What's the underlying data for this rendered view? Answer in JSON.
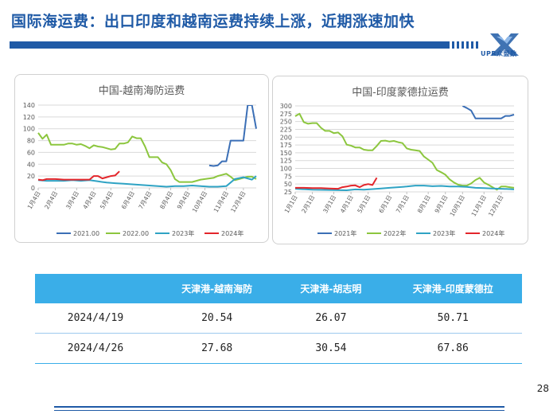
{
  "header": {
    "title": "国际海运费：出口印度和越南运费持续上涨，近期涨速加快",
    "logo_text": "UPR众盟数",
    "brand_color": "#1f5aa6"
  },
  "chart_data": [
    {
      "type": "line",
      "title": "中国-越南海防运费",
      "ylim": [
        0,
        140
      ],
      "yticks": [
        0,
        20,
        40,
        60,
        80,
        100,
        120,
        140
      ],
      "xlim": [
        0,
        51
      ],
      "x_ticks": [
        {
          "x": 0,
          "label": "1月4日"
        },
        {
          "x": 4,
          "label": "2月4日"
        },
        {
          "x": 9,
          "label": "3月4日"
        },
        {
          "x": 13,
          "label": "4月4日"
        },
        {
          "x": 17,
          "label": "5月4日"
        },
        {
          "x": 22,
          "label": "6月4日"
        },
        {
          "x": 26,
          "label": "7月4日"
        },
        {
          "x": 31,
          "label": "8月4日"
        },
        {
          "x": 35,
          "label": "9月4日"
        },
        {
          "x": 39,
          "label": "10月4日"
        },
        {
          "x": 44,
          "label": "11月4日"
        },
        {
          "x": 48,
          "label": "12月4日"
        }
      ],
      "legend_position": "bottom",
      "series": [
        {
          "name": "2021.00",
          "color": "#3b6fb6",
          "points": [
            [
              40,
              38
            ],
            [
              41,
              37
            ],
            [
              42,
              38
            ],
            [
              43,
              45
            ],
            [
              44,
              45
            ],
            [
              45,
              80
            ],
            [
              46,
              80
            ],
            [
              47,
              80
            ],
            [
              48,
              80
            ],
            [
              49,
              140
            ],
            [
              50,
              140
            ],
            [
              51,
              100
            ]
          ]
        },
        {
          "name": "2022.00",
          "color": "#8cc63e",
          "points": [
            [
              0,
              93
            ],
            [
              1,
              83
            ],
            [
              2,
              90
            ],
            [
              3,
              73
            ],
            [
              4,
              73
            ],
            [
              5,
              73
            ],
            [
              6,
              73
            ],
            [
              7,
              75
            ],
            [
              8,
              75
            ],
            [
              9,
              73
            ],
            [
              10,
              74
            ],
            [
              11,
              71
            ],
            [
              12,
              67
            ],
            [
              13,
              72
            ],
            [
              14,
              70
            ],
            [
              15,
              69
            ],
            [
              16,
              67
            ],
            [
              17,
              65
            ],
            [
              18,
              66
            ],
            [
              19,
              75
            ],
            [
              20,
              75
            ],
            [
              21,
              77
            ],
            [
              22,
              87
            ],
            [
              23,
              84
            ],
            [
              24,
              84
            ],
            [
              25,
              70
            ],
            [
              26,
              52
            ],
            [
              27,
              52
            ],
            [
              28,
              52
            ],
            [
              29,
              43
            ],
            [
              30,
              40
            ],
            [
              31,
              30
            ],
            [
              32,
              15
            ],
            [
              33,
              10
            ],
            [
              34,
              10
            ],
            [
              35,
              10
            ],
            [
              36,
              10
            ],
            [
              37,
              12
            ],
            [
              38,
              14
            ],
            [
              39,
              15
            ],
            [
              40,
              16
            ],
            [
              41,
              17
            ],
            [
              42,
              20
            ],
            [
              43,
              22
            ],
            [
              44,
              24
            ],
            [
              45,
              19
            ],
            [
              46,
              13
            ],
            [
              47,
              15
            ],
            [
              48,
              17
            ],
            [
              49,
              19
            ],
            [
              50,
              19
            ],
            [
              51,
              15
            ]
          ]
        },
        {
          "name": "2023年",
          "color": "#2fa3c4",
          "points": [
            [
              0,
              13
            ],
            [
              2,
              12
            ],
            [
              4,
              12
            ],
            [
              6,
              12
            ],
            [
              8,
              13
            ],
            [
              10,
              12
            ],
            [
              12,
              13
            ],
            [
              14,
              11
            ],
            [
              16,
              9
            ],
            [
              18,
              8
            ],
            [
              20,
              7
            ],
            [
              22,
              6
            ],
            [
              24,
              5
            ],
            [
              26,
              4
            ],
            [
              28,
              3
            ],
            [
              30,
              2
            ],
            [
              32,
              3
            ],
            [
              34,
              3
            ],
            [
              36,
              4
            ],
            [
              38,
              3
            ],
            [
              40,
              2
            ],
            [
              42,
              2
            ],
            [
              44,
              3
            ],
            [
              46,
              15
            ],
            [
              48,
              18
            ],
            [
              50,
              14
            ],
            [
              51,
              20
            ]
          ]
        },
        {
          "name": "2024年",
          "color": "#e3262b",
          "points": [
            [
              0,
              14
            ],
            [
              1,
              13
            ],
            [
              2,
              15
            ],
            [
              4,
              15
            ],
            [
              6,
              14
            ],
            [
              8,
              14
            ],
            [
              10,
              14
            ],
            [
              12,
              14
            ],
            [
              13,
              20
            ],
            [
              14,
              20
            ],
            [
              15,
              16
            ],
            [
              16,
              18
            ],
            [
              17,
              20
            ],
            [
              18,
              21
            ],
            [
              19,
              28
            ]
          ]
        }
      ]
    },
    {
      "type": "line",
      "title": "中国-印度蒙德拉运费",
      "ylim": [
        25,
        300
      ],
      "yticks": [
        25,
        50,
        75,
        100,
        125,
        150,
        175,
        200,
        225,
        250,
        275,
        300
      ],
      "xlim": [
        0,
        51
      ],
      "x_ticks": [
        {
          "x": 0,
          "label": "1月1日"
        },
        {
          "x": 4,
          "label": "2月1日"
        },
        {
          "x": 9,
          "label": "3月1日"
        },
        {
          "x": 13,
          "label": "4月1日"
        },
        {
          "x": 17,
          "label": "5月1日"
        },
        {
          "x": 22,
          "label": "6月1日"
        },
        {
          "x": 26,
          "label": "7月1日"
        },
        {
          "x": 31,
          "label": "8月1日"
        },
        {
          "x": 35,
          "label": "9月1日"
        },
        {
          "x": 39,
          "label": "10月1日"
        },
        {
          "x": 44,
          "label": "11月1日"
        },
        {
          "x": 48,
          "label": "12月1日"
        }
      ],
      "legend_position": "bottom",
      "series": [
        {
          "name": "2021年",
          "color": "#3b6fb6",
          "points": [
            [
              39,
              300
            ],
            [
              40,
              293
            ],
            [
              41,
              285
            ],
            [
              42,
              260
            ],
            [
              43,
              260
            ],
            [
              44,
              260
            ],
            [
              45,
              260
            ],
            [
              46,
              260
            ],
            [
              47,
              260
            ],
            [
              48,
              260
            ],
            [
              49,
              268
            ],
            [
              50,
              268
            ],
            [
              51,
              272
            ]
          ]
        },
        {
          "name": "2022年",
          "color": "#8cc63e",
          "points": [
            [
              0,
              267
            ],
            [
              1,
              275
            ],
            [
              2,
              248
            ],
            [
              3,
              243
            ],
            [
              4,
              245
            ],
            [
              5,
              245
            ],
            [
              6,
              230
            ],
            [
              7,
              220
            ],
            [
              8,
              220
            ],
            [
              9,
              213
            ],
            [
              10,
              215
            ],
            [
              11,
              203
            ],
            [
              12,
              176
            ],
            [
              13,
              173
            ],
            [
              14,
              167
            ],
            [
              15,
              167
            ],
            [
              16,
              160
            ],
            [
              17,
              158
            ],
            [
              18,
              158
            ],
            [
              19,
              172
            ],
            [
              20,
              188
            ],
            [
              21,
              189
            ],
            [
              22,
              186
            ],
            [
              23,
              188
            ],
            [
              24,
              184
            ],
            [
              25,
              181
            ],
            [
              26,
              164
            ],
            [
              27,
              160
            ],
            [
              28,
              158
            ],
            [
              29,
              156
            ],
            [
              30,
              138
            ],
            [
              31,
              128
            ],
            [
              32,
              118
            ],
            [
              33,
              95
            ],
            [
              34,
              88
            ],
            [
              35,
              80
            ],
            [
              36,
              65
            ],
            [
              37,
              55
            ],
            [
              38,
              48
            ],
            [
              39,
              45
            ],
            [
              40,
              45
            ],
            [
              41,
              52
            ],
            [
              42,
              63
            ],
            [
              43,
              70
            ],
            [
              44,
              55
            ],
            [
              45,
              48
            ],
            [
              46,
              40
            ],
            [
              47,
              32
            ],
            [
              48,
              42
            ],
            [
              49,
              42
            ],
            [
              50,
              40
            ],
            [
              51,
              38
            ]
          ]
        },
        {
          "name": "2023年",
          "color": "#2fa3c4",
          "points": [
            [
              0,
              35
            ],
            [
              4,
              32
            ],
            [
              8,
              31
            ],
            [
              12,
              30
            ],
            [
              14,
              33
            ],
            [
              16,
              32
            ],
            [
              18,
              34
            ],
            [
              20,
              36
            ],
            [
              22,
              38
            ],
            [
              24,
              40
            ],
            [
              26,
              42
            ],
            [
              28,
              45
            ],
            [
              30,
              45
            ],
            [
              32,
              43
            ],
            [
              34,
              44
            ],
            [
              36,
              42
            ],
            [
              38,
              42
            ],
            [
              40,
              41
            ],
            [
              42,
              38
            ],
            [
              44,
              37
            ],
            [
              46,
              36
            ],
            [
              48,
              35
            ],
            [
              50,
              34
            ],
            [
              51,
              33
            ]
          ]
        },
        {
          "name": "2024年",
          "color": "#e3262b",
          "points": [
            [
              0,
              38
            ],
            [
              2,
              38
            ],
            [
              4,
              37
            ],
            [
              6,
              37
            ],
            [
              8,
              36
            ],
            [
              10,
              35
            ],
            [
              11,
              40
            ],
            [
              12,
              42
            ],
            [
              13,
              45
            ],
            [
              14,
              46
            ],
            [
              15,
              40
            ],
            [
              16,
              47
            ],
            [
              17,
              50
            ],
            [
              18,
              47
            ],
            [
              19,
              70
            ]
          ]
        }
      ]
    }
  ],
  "table": {
    "headers": [
      "",
      "天津港-越南海防",
      "天津港-胡志明",
      "天津港-印度蒙德拉"
    ],
    "rows": [
      [
        "2024/4/19",
        "20.54",
        "26.07",
        "50.71"
      ],
      [
        "2024/4/26",
        "27.68",
        "30.54",
        "67.86"
      ]
    ],
    "header_color": "#3aaee8"
  },
  "footer": {
    "page_number": "28"
  }
}
